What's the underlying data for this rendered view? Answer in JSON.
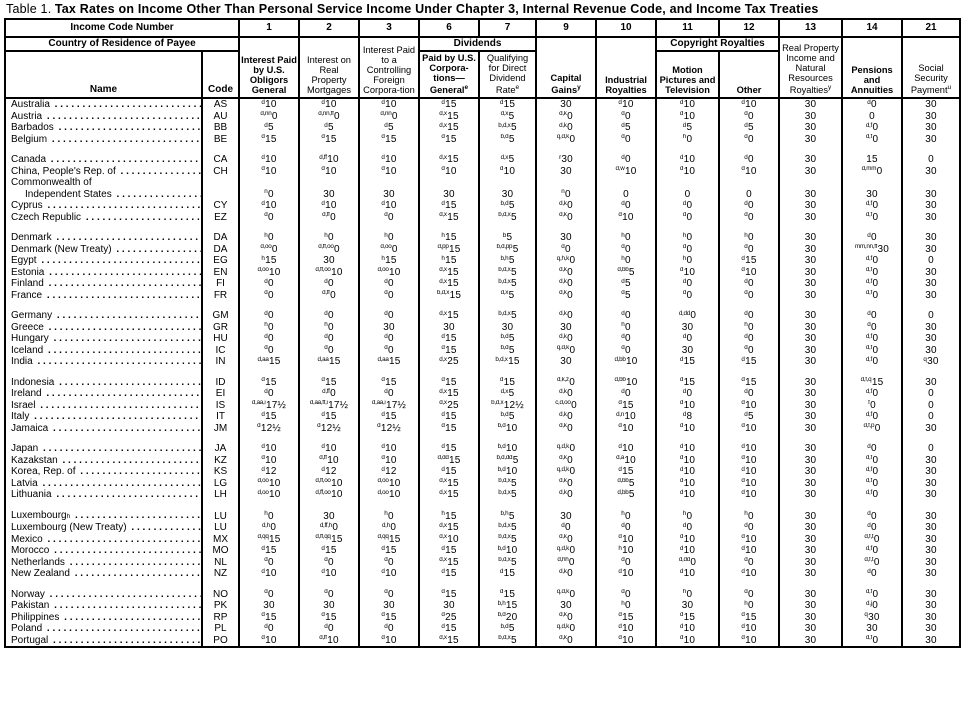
{
  "title": {
    "prefix": "Table 1.",
    "text": "Tax Rates on Income Other Than Personal Service Income Under Chapter 3, Internal Revenue Code, and Income Tax Treaties"
  },
  "header": {
    "income_code_number": "Income Code Number",
    "country_of_residence": "Country of Residence of Payee",
    "codes": [
      "1",
      "2",
      "3",
      "6",
      "7",
      "9",
      "10",
      "11",
      "12",
      "13",
      "14",
      "21"
    ],
    "dividends": "Dividends",
    "copyright_royalties": "Copyright Royalties",
    "name": "Name",
    "code": "Code",
    "columns": {
      "c1": {
        "label": "Interest Paid by U.S. Obligors General",
        "sup": ""
      },
      "c2": {
        "label": "Interest on Real Property Mortgages",
        "sup": ""
      },
      "c3": {
        "label": "Interest Paid to a Controlling Foreign Corpora-tion",
        "sup": ""
      },
      "c6": {
        "label": "Paid by U.S. Corpora-tions—General",
        "sup": "e"
      },
      "c7": {
        "label": "Qualifying for Direct Dividend Rate",
        "sup": "e"
      },
      "c9": {
        "label": "Capital Gains",
        "sup": "y"
      },
      "c10": {
        "label": "Industrial Royalties",
        "sup": ""
      },
      "c11": {
        "label": "Motion Pictures and Television",
        "sup": ""
      },
      "c12": {
        "label": "Other",
        "sup": ""
      },
      "c13": {
        "label": "Real Property Income and Natural Resources Royalties",
        "sup": "y"
      },
      "c14": {
        "label": "Pensions and Annuities",
        "sup": ""
      },
      "c21": {
        "label": "Social Security Payment",
        "sup": "u"
      }
    }
  },
  "groups": [
    {
      "rows": [
        {
          "name": "Australia",
          "code": "AS",
          "values": [
            "d|10",
            "d|10",
            "d|10",
            "d|15",
            "d|15",
            "|30",
            "d|10",
            "d|10",
            "d|10",
            "|30",
            "d|0",
            "|30"
          ]
        },
        {
          "name": "Austria",
          "code": "AU",
          "values": [
            "d,nn|0",
            "d,nn,ff|0",
            "d,nn|0",
            "d,x|15",
            "d,x|5",
            "d,k|0",
            "d|0",
            "d|10",
            "d|0",
            "|30",
            "|0",
            "|30"
          ]
        },
        {
          "name": "Barbados",
          "code": "BB",
          "values": [
            "d|5",
            "d|5",
            "d|5",
            "d,x|15",
            "b,d,x|5",
            "d,k|0",
            "d|5",
            "d|5",
            "d|5",
            "|30",
            "d,f|0",
            "|30"
          ]
        },
        {
          "name": "Belgium",
          "code": "BE",
          "values": [
            "d|15",
            "d|15",
            "d|15",
            "d|15",
            "b,d|5",
            "q,d,k|0",
            "d|0",
            "h|0",
            "d|0",
            "|30",
            "d,f|0",
            "|30"
          ]
        }
      ]
    },
    {
      "rows": [
        {
          "name": "Canada",
          "code": "CA",
          "values": [
            "d|10",
            "d,ff|10",
            "d|10",
            "d,x|15",
            "d,x|5",
            "r|30",
            "d|0",
            "d|10",
            "d|0",
            "|30",
            "|15",
            "|0"
          ]
        },
        {
          "name": "China, People's Rep. of",
          "code": "CH",
          "values": [
            "d|10",
            "d|10",
            "d|10",
            "d|10",
            "d|10",
            "|30",
            "d,w|10",
            "d|10",
            "d|10",
            "|30",
            "d,mm|0",
            "|30"
          ]
        },
        {
          "name": "Commonwealth of",
          "name2": "Independent States",
          "code": "",
          "values": [
            "n|0",
            "|30",
            "|30",
            "|30",
            "|30",
            "n|0",
            "|0",
            "|0",
            "|0",
            "|30",
            "|30",
            "|30"
          ]
        },
        {
          "name": "Cyprus",
          "code": "CY",
          "values": [
            "d|10",
            "d|10",
            "d|10",
            "d|15",
            "b,d|5",
            "d,k|0",
            "d|0",
            "d|0",
            "d|0",
            "|30",
            "d,f|0",
            "|30"
          ]
        },
        {
          "name": "Czech Republic",
          "code": "EZ",
          "values": [
            "d|0",
            "d,ff|0",
            "d|0",
            "d,x|15",
            "b,d,x|5",
            "d,k|0",
            "d|10",
            "d|0",
            "d|0",
            "|30",
            "d,f|0",
            "|30"
          ]
        }
      ]
    },
    {
      "rows": [
        {
          "name": "Denmark",
          "code": "DA",
          "values": [
            "h|0",
            "h|0",
            "h|0",
            "h|15",
            "b|5",
            "|30",
            "h|0",
            "h|0",
            "h|0",
            "|30",
            "d|0",
            "|30"
          ]
        },
        {
          "name": "Denmark (New Treaty)",
          "code": "DA",
          "values": [
            "d,oo|0",
            "d,ff,oo|0",
            "d,oo|0",
            "d,pp|15",
            "b,d,pp|5",
            "d|0",
            "d|0",
            "d|0",
            "d|0",
            "|30",
            "mm,nn,ff|30",
            "|30"
          ]
        },
        {
          "name": "Egypt",
          "code": "EG",
          "values": [
            "h|15",
            "|30",
            "h|15",
            "h|15",
            "b,h|5",
            "q,h,k|0",
            "h|0",
            "h|0",
            "d|15",
            "|30",
            "d,f|0",
            "|0"
          ]
        },
        {
          "name": "Estonia",
          "code": "EN",
          "values": [
            "d,oo|10",
            "d,ff,oo|10",
            "d,oo|10",
            "d,x|15",
            "b,d,x|5",
            "d,k|0",
            "d,bb|5",
            "d|10",
            "d|10",
            "|30",
            "d,f|0",
            "|30"
          ]
        },
        {
          "name": "Finland",
          "code": "FI",
          "values": [
            "d|0",
            "d|0",
            "d|0",
            "d,x|15",
            "b,d,x|5",
            "d,k|0",
            "d|5",
            "d|0",
            "d|0",
            "|30",
            "d,f|0",
            "|30"
          ]
        },
        {
          "name": "France",
          "code": "FR",
          "values": [
            "d|0",
            "d,ff|0",
            "d|0",
            "b,d,x|15",
            "d,x|5",
            "d,k|0",
            "d|5",
            "d|0",
            "d|0",
            "|30",
            "d,f|0",
            "|30"
          ]
        }
      ]
    },
    {
      "rows": [
        {
          "name": "Germany",
          "code": "GM",
          "values": [
            "d|0",
            "d|0",
            "d|0",
            "d,x|15",
            "b,d,x|5",
            "d,k|0",
            "d|0",
            "d,dd|0",
            "d|0",
            "|30",
            "d|0",
            "|0"
          ]
        },
        {
          "name": "Greece",
          "code": "GR",
          "values": [
            "h|0",
            "h|0",
            "|30",
            "|30",
            "|30",
            "|30",
            "h|0",
            "|30",
            "h|0",
            "|30",
            "d|0",
            "|30"
          ]
        },
        {
          "name": "Hungary",
          "code": "HU",
          "values": [
            "d|0",
            "d|0",
            "d|0",
            "d|15",
            "b,d|5",
            "d,k|0",
            "d|0",
            "d|0",
            "d|0",
            "|30",
            "d,f|0",
            "|30"
          ]
        },
        {
          "name": "Iceland",
          "code": "IC",
          "values": [
            "d|0",
            "d|0",
            "d|0",
            "d|15",
            "b,d|5",
            "q,d,k|0",
            "d|0",
            "|30",
            "d|0",
            "|30",
            "d,f|0",
            "|30"
          ]
        },
        {
          "name": "India",
          "code": "IN",
          "values": [
            "d,aa|15",
            "d,aa|15",
            "d,aa|15",
            "d,x|25",
            "b,d,x|15",
            "|30",
            "d,bb|10",
            "d|15",
            "d|15",
            "|30",
            "d,f|0",
            "q|30"
          ]
        }
      ]
    },
    {
      "rows": [
        {
          "name": "Indonesia",
          "code": "ID",
          "values": [
            "d|15",
            "d|15",
            "d|15",
            "d|15",
            "d|15",
            "d,k,z|0",
            "d,bb|10",
            "d|15",
            "d|15",
            "|30",
            "d,f,q|15",
            "|30"
          ]
        },
        {
          "name": "Ireland",
          "code": "EI",
          "values": [
            "d|0",
            "d,ff|0",
            "d|0",
            "d,x|15",
            "d,x|5",
            "d,k|0",
            "d|0",
            "d|0",
            "d|0",
            "|30",
            "d,f|0",
            "|0"
          ]
        },
        {
          "name": "Israel",
          "code": "IS",
          "values": [
            "d,aa,i|17½",
            "d,aa,ff,i|17½",
            "d,aa,i|17½",
            "d,x|25",
            "b,d,x|12½",
            "c,d,oo|0",
            "d|15",
            "d|10",
            "d|10",
            "|30",
            "f|0",
            "|0"
          ]
        },
        {
          "name": "Italy",
          "code": "IT",
          "values": [
            "d|15",
            "d|15",
            "d|15",
            "d|15",
            "b,d|5",
            "d,k|0",
            "d,n|10",
            "d|8",
            "d|5",
            "|30",
            "d,f|0",
            "|0"
          ]
        },
        {
          "name": "Jamaica",
          "code": "JM",
          "values": [
            "d|12½",
            "d|12½",
            "d|12½",
            "d|15",
            "b,d|10",
            "d,k|0",
            "d|10",
            "d|10",
            "d|10",
            "|30",
            "d,f,p|0",
            "|30"
          ]
        }
      ]
    },
    {
      "rows": [
        {
          "name": "Japan",
          "code": "JA",
          "values": [
            "d|10",
            "d|10",
            "d|10",
            "d|15",
            "b,d|10",
            "q,d,k|0",
            "d|10",
            "d|10",
            "d|10",
            "|30",
            "d|0",
            "|0"
          ]
        },
        {
          "name": "Kazakstan",
          "code": "KZ",
          "values": [
            "d|10",
            "d,ff|10",
            "d|10",
            "d,dd|15",
            "b,d,dd|5",
            "d,k|0",
            "d,a|10",
            "d|10",
            "d|10",
            "|30",
            "d,f|0",
            "|30"
          ]
        },
        {
          "name": "Korea, Rep. of",
          "code": "KS",
          "values": [
            "d|12",
            "d|12",
            "d|12",
            "d|15",
            "b,d|10",
            "q,d,k|0",
            "d|15",
            "d|10",
            "d|10",
            "|30",
            "d,f|0",
            "|30"
          ]
        },
        {
          "name": "Latvia",
          "code": "LG",
          "values": [
            "d,oo|10",
            "d,ff,oo|10",
            "d,oo|10",
            "d,x|15",
            "b,d,x|5",
            "d,k|0",
            "d,bb|5",
            "d|10",
            "d|10",
            "|30",
            "d,f|0",
            "|30"
          ]
        },
        {
          "name": "Lithuania",
          "code": "LH",
          "values": [
            "d,oo|10",
            "d,ff,oo|10",
            "d,oo|10",
            "d,x|15",
            "b,d,x|5",
            "d,k|0",
            "d,bb|5",
            "d|10",
            "d|10",
            "|30",
            "d,f|0",
            "|30"
          ]
        }
      ]
    },
    {
      "rows": [
        {
          "name": "Luxembourg",
          "sup": "h",
          "code": "LU",
          "values": [
            "h|0",
            "|30",
            "h|0",
            "h|15",
            "b,h|5",
            "|30",
            "h|0",
            "h|0",
            "h|0",
            "|30",
            "d|0",
            "|30"
          ]
        },
        {
          "name": "Luxembourg (New Treaty)",
          "code": "LU",
          "values": [
            "d,h|0",
            "d,ff,h|0",
            "d,h|0",
            "d,x|15",
            "b,d,x|5",
            "d|0",
            "d|0",
            "d|0",
            "d|0",
            "|30",
            "d|0",
            "|30"
          ]
        },
        {
          "name": "Mexico",
          "code": "MX",
          "values": [
            "d,qq|15",
            "d,ff,qq|15",
            "d,qq|15",
            "d,x|10",
            "b,d,x|5",
            "d,k|0",
            "d|10",
            "d|10",
            "d|10",
            "|30",
            "d,f,t|0",
            "|30"
          ]
        },
        {
          "name": "Morocco",
          "code": "MO",
          "values": [
            "d|15",
            "d|15",
            "d|15",
            "d|15",
            "b,d|10",
            "q,d,k|0",
            "h|10",
            "d|10",
            "d|10",
            "|30",
            "d,f|0",
            "|30"
          ]
        },
        {
          "name": "Netherlands",
          "code": "NL",
          "values": [
            "d|0",
            "d|0",
            "d|0",
            "d,x|15",
            "b,d,x|5",
            "d,hh|0",
            "d|0",
            "d,dd|0",
            "d|0",
            "|30",
            "d,f,t|0",
            "|30"
          ]
        },
        {
          "name": "New Zealand",
          "code": "NZ",
          "values": [
            "d|10",
            "d|10",
            "d|10",
            "d|15",
            "d|15",
            "d,k|0",
            "d|10",
            "d|10",
            "d|10",
            "|30",
            "d|0",
            "|30"
          ]
        }
      ]
    },
    {
      "rows": [
        {
          "name": "Norway",
          "code": "NO",
          "values": [
            "d|0",
            "d|0",
            "d|0",
            "d|15",
            "d|15",
            "q,d,k|0",
            "d|0",
            "h|0",
            "d|0",
            "|30",
            "d,f|0",
            "|30"
          ]
        },
        {
          "name": "Pakistan",
          "code": "PK",
          "values": [
            "|30",
            "|30",
            "|30",
            "|30",
            "b,h|15",
            "|30",
            "h|0",
            "|30",
            "h|0",
            "|30",
            "d,j|0",
            "|30"
          ]
        },
        {
          "name": "Philippines",
          "code": "RP",
          "values": [
            "d|15",
            "d|15",
            "d|15",
            "d|25",
            "b,d|20",
            "d,k|0",
            "d|15",
            "d|15",
            "d|15",
            "|30",
            "q|30",
            "|30"
          ]
        },
        {
          "name": "Poland",
          "code": "PL",
          "values": [
            "d|0",
            "d|0",
            "d|0",
            "d|15",
            "b,d|5",
            "q,d,k|0",
            "d|10",
            "d|10",
            "d|10",
            "|30",
            "|30",
            "|30"
          ]
        },
        {
          "name": "Portugal",
          "code": "PO",
          "values": [
            "d|10",
            "d,ff|10",
            "d|10",
            "d,x|15",
            "b,d,x|5",
            "d,k|0",
            "d|10",
            "d|10",
            "d|10",
            "|30",
            "d,f|0",
            "|30"
          ]
        }
      ]
    }
  ]
}
